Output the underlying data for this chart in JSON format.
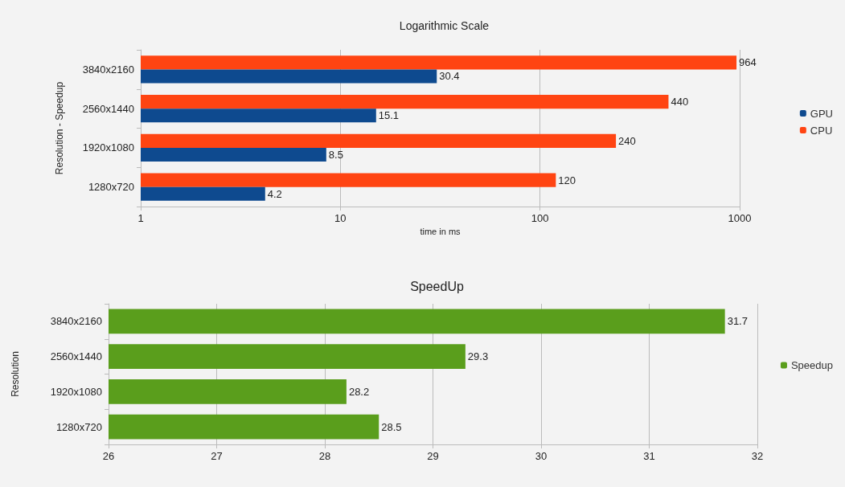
{
  "chart_data": [
    {
      "type": "bar",
      "orientation": "horizontal",
      "title": "Logarithmic Scale",
      "xlabel": "time in ms",
      "ylabel": "Resolution - Speedup",
      "categories": [
        "3840x2160",
        "2560x1440",
        "1920x1080",
        "1280x720"
      ],
      "series": [
        {
          "name": "GPU",
          "color": "#0e4a8f",
          "values": [
            30.4,
            15.1,
            8.5,
            4.2
          ]
        },
        {
          "name": "CPU",
          "color": "#ff4412",
          "values": [
            964,
            440,
            240,
            120
          ]
        }
      ],
      "log": "x",
      "xlim": [
        1,
        1000
      ],
      "xticks": [
        1,
        10,
        100,
        1000
      ],
      "grid": "x",
      "legend": "right",
      "data_labels": true
    },
    {
      "type": "bar",
      "orientation": "horizontal",
      "title": "SpeedUp",
      "ylabel": "Resolution",
      "categories": [
        "3840x2160",
        "2560x1440",
        "1920x1080",
        "1280x720"
      ],
      "series": [
        {
          "name": "Speedup",
          "color": "#5a9e1c",
          "values": [
            31.7,
            29.3,
            28.2,
            28.5
          ]
        }
      ],
      "xlim": [
        26,
        32
      ],
      "xticks": [
        26,
        27,
        28,
        29,
        30,
        31,
        32
      ],
      "grid": "x",
      "legend": "right",
      "data_labels": true
    }
  ]
}
